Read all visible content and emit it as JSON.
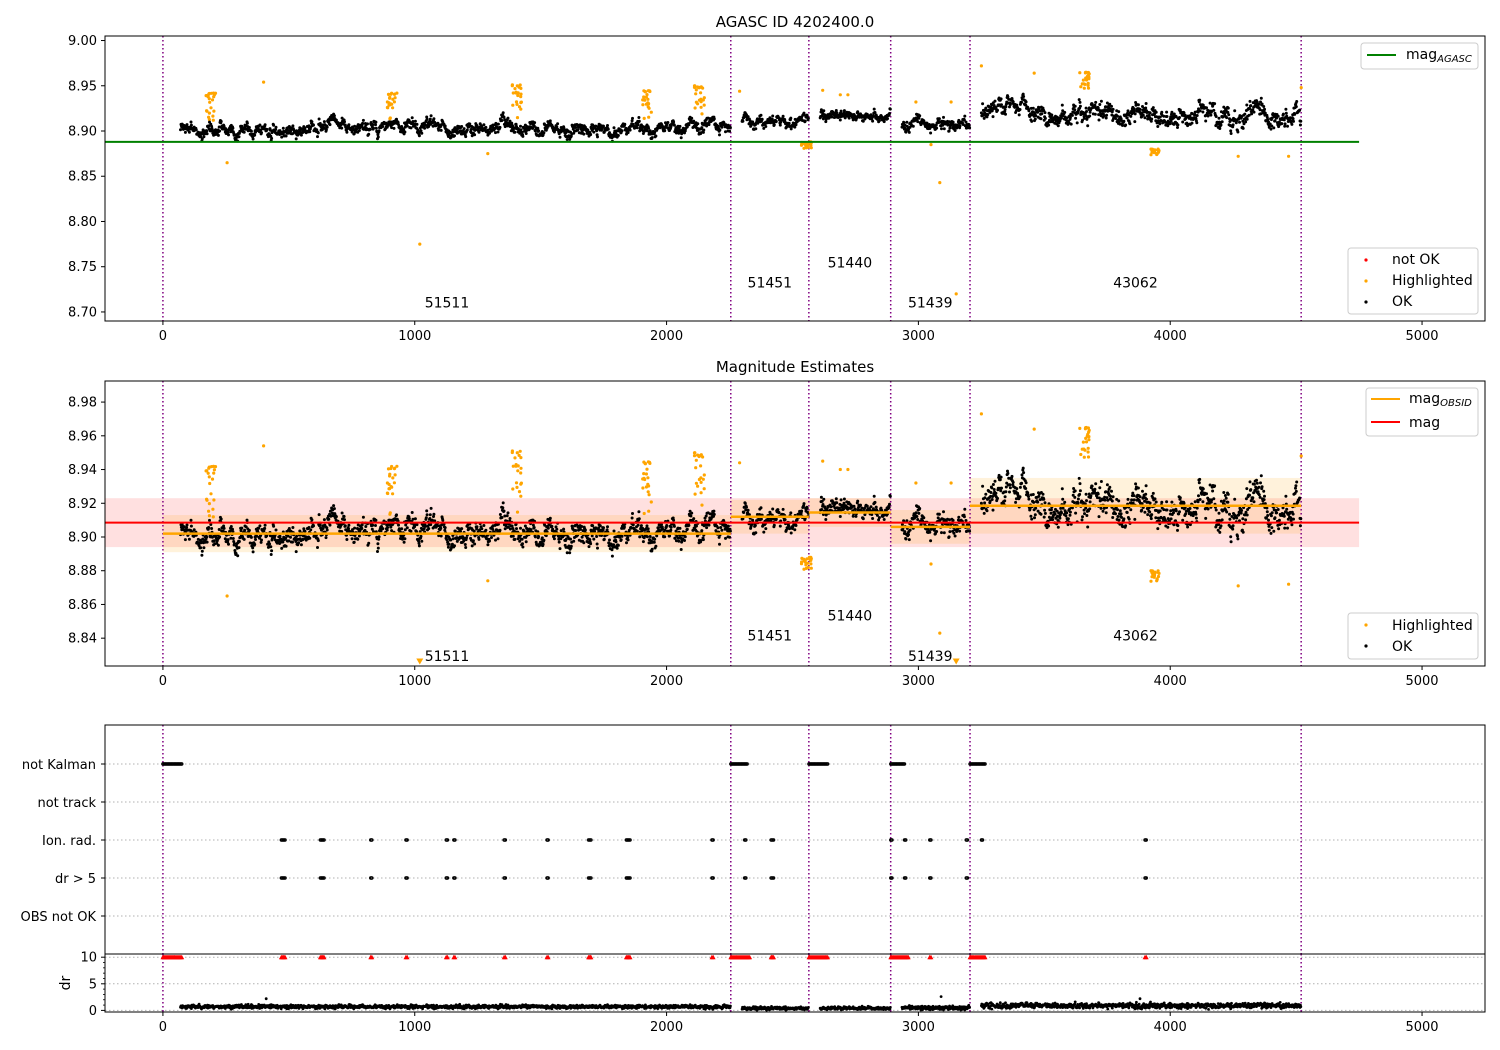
{
  "colors": {
    "ok": "#000000",
    "highlighted": "#ffa500",
    "not_ok": "#ff0000",
    "mag_agasc": "#008000",
    "mag_obsid": "#ffa500",
    "mag": "#ff0000",
    "obs_boundary": "#800080",
    "grid": "#b0b0b0"
  },
  "chart_data": [
    {
      "type": "scatter",
      "title": "AGASC ID 4202400.0",
      "xlim": [
        -230,
        5250
      ],
      "ylim": [
        8.69,
        9.005
      ],
      "xticks": [
        0,
        1000,
        2000,
        3000,
        4000,
        5000
      ],
      "xtick_labels": [
        "0",
        "1000",
        "2000",
        "3000",
        "4000",
        "5000"
      ],
      "yticks": [
        8.7,
        8.75,
        8.8,
        8.85,
        8.9,
        8.95,
        9.0
      ],
      "ytick_labels": [
        "8.70",
        "8.75",
        "8.80",
        "8.85",
        "8.90",
        "8.95",
        "9.00"
      ],
      "obs_boundaries": [
        0,
        2255,
        2565,
        2890,
        3205,
        4520
      ],
      "obsid_labels": [
        {
          "text": "51511",
          "x": 1128,
          "y": 8.705
        },
        {
          "text": "51451",
          "x": 2410,
          "y": 8.727
        },
        {
          "text": "51440",
          "x": 2728,
          "y": 8.749
        },
        {
          "text": "51439",
          "x": 3047,
          "y": 8.705
        },
        {
          "text": "43062",
          "x": 3862,
          "y": 8.727
        }
      ],
      "lines": [
        {
          "name": "mag_AGASC",
          "x": [
            -230,
            4750
          ],
          "y": [
            8.888,
            8.888
          ]
        }
      ],
      "legends": [
        {
          "position": "top-right",
          "entries": [
            {
              "label": "mag",
              "subscript": "AGASC",
              "kind": "line",
              "color": "#008000"
            }
          ]
        },
        {
          "position": "bottom-right",
          "entries": [
            {
              "label": "not OK",
              "kind": "marker",
              "color": "#ff0000"
            },
            {
              "label": "Highlighted",
              "kind": "marker",
              "color": "#ffa500"
            },
            {
              "label": "OK",
              "kind": "marker",
              "color": "#000000"
            }
          ]
        }
      ],
      "segments": [
        {
          "x0": 70,
          "x1": 2255,
          "base": 8.902,
          "spread": 0.0075
        },
        {
          "x0": 2300,
          "x1": 2565,
          "base": 8.912,
          "spread": 0.0065
        },
        {
          "x0": 2610,
          "x1": 2890,
          "base": 8.915,
          "spread": 0.0055
        },
        {
          "x0": 2935,
          "x1": 3205,
          "base": 8.905,
          "spread": 0.0065
        },
        {
          "x0": 3250,
          "x1": 4520,
          "base": 8.918,
          "spread": 0.011
        }
      ],
      "highlight_clusters": [
        {
          "x": 190,
          "y0": 8.905,
          "y1": 8.942
        },
        {
          "x": 910,
          "y0": 8.91,
          "y1": 8.942
        },
        {
          "x": 1405,
          "y0": 8.905,
          "y1": 8.951
        },
        {
          "x": 1920,
          "y0": 8.91,
          "y1": 8.945
        },
        {
          "x": 2130,
          "y0": 8.91,
          "y1": 8.95
        },
        {
          "x": 2555,
          "y0": 8.88,
          "y1": 8.888
        },
        {
          "x": 3660,
          "y0": 8.945,
          "y1": 8.965
        },
        {
          "x": 3940,
          "y0": 8.873,
          "y1": 8.88
        }
      ],
      "highlight_points": [
        {
          "x": 255,
          "y": 8.865
        },
        {
          "x": 400,
          "y": 8.954
        },
        {
          "x": 1020,
          "y": 8.775
        },
        {
          "x": 1290,
          "y": 8.875
        },
        {
          "x": 2290,
          "y": 8.944
        },
        {
          "x": 2620,
          "y": 8.945
        },
        {
          "x": 2690,
          "y": 8.94
        },
        {
          "x": 2720,
          "y": 8.94
        },
        {
          "x": 2990,
          "y": 8.932
        },
        {
          "x": 3050,
          "y": 8.885
        },
        {
          "x": 3085,
          "y": 8.843
        },
        {
          "x": 3150,
          "y": 8.72
        },
        {
          "x": 3130,
          "y": 8.932
        },
        {
          "x": 3250,
          "y": 8.972
        },
        {
          "x": 3460,
          "y": 8.964
        },
        {
          "x": 4270,
          "y": 8.872
        },
        {
          "x": 4470,
          "y": 8.872
        },
        {
          "x": 4520,
          "y": 8.948
        }
      ]
    },
    {
      "type": "scatter",
      "title": "Magnitude Estimates",
      "xlim": [
        -230,
        5250
      ],
      "ylim": [
        8.8235,
        8.9925
      ],
      "xticks": [
        0,
        1000,
        2000,
        3000,
        4000,
        5000
      ],
      "xtick_labels": [
        "0",
        "1000",
        "2000",
        "3000",
        "4000",
        "5000"
      ],
      "yticks": [
        8.84,
        8.86,
        8.88,
        8.9,
        8.92,
        8.94,
        8.96,
        8.98
      ],
      "ytick_labels": [
        "8.84",
        "8.86",
        "8.88",
        "8.90",
        "8.92",
        "8.94",
        "8.96",
        "8.98"
      ],
      "obs_boundaries": [
        0,
        2255,
        2565,
        2890,
        3205,
        4520
      ],
      "obsid_labels": [
        {
          "text": "51511",
          "x": 1128,
          "y": 8.8265
        },
        {
          "text": "51451",
          "x": 2410,
          "y": 8.8385
        },
        {
          "text": "51440",
          "x": 2728,
          "y": 8.8505
        },
        {
          "text": "51439",
          "x": 3047,
          "y": 8.8265
        },
        {
          "text": "43062",
          "x": 3862,
          "y": 8.8385
        }
      ],
      "mag": {
        "value": 8.9085,
        "band": [
          8.894,
          8.923
        ],
        "x": [
          -230,
          4750
        ]
      },
      "mag_obsid": [
        {
          "x0": 0,
          "x1": 2255,
          "value": 8.902,
          "band": [
            8.891,
            8.913
          ]
        },
        {
          "x0": 2255,
          "x1": 2565,
          "value": 8.912,
          "band": [
            8.902,
            8.922
          ]
        },
        {
          "x0": 2565,
          "x1": 2890,
          "value": 8.9145,
          "band": [
            8.906,
            8.923
          ]
        },
        {
          "x0": 2890,
          "x1": 3205,
          "value": 8.906,
          "band": [
            8.896,
            8.916
          ]
        },
        {
          "x0": 3205,
          "x1": 4520,
          "value": 8.9185,
          "band": [
            8.902,
            8.935
          ]
        }
      ],
      "down_markers": [
        {
          "x": 1020,
          "y": 8.825
        },
        {
          "x": 3150,
          "y": 8.825
        }
      ],
      "legends": [
        {
          "position": "top-right",
          "entries": [
            {
              "label": "mag",
              "subscript": "OBSID",
              "kind": "line",
              "color": "#ffa500"
            },
            {
              "label": "mag",
              "subscript": "",
              "kind": "line",
              "color": "#ff0000"
            }
          ]
        },
        {
          "position": "bottom-right",
          "entries": [
            {
              "label": "Highlighted",
              "kind": "marker",
              "color": "#ffa500"
            },
            {
              "label": "OK",
              "kind": "marker",
              "color": "#000000"
            }
          ]
        }
      ],
      "segments": [
        {
          "x0": 70,
          "x1": 2255,
          "base": 8.902,
          "spread": 0.0075
        },
        {
          "x0": 2300,
          "x1": 2565,
          "base": 8.912,
          "spread": 0.0065
        },
        {
          "x0": 2610,
          "x1": 2890,
          "base": 8.915,
          "spread": 0.0055
        },
        {
          "x0": 2935,
          "x1": 3205,
          "base": 8.905,
          "spread": 0.0065
        },
        {
          "x0": 3250,
          "x1": 4520,
          "base": 8.918,
          "spread": 0.011
        }
      ],
      "highlight_clusters": [
        {
          "x": 190,
          "y0": 8.905,
          "y1": 8.942
        },
        {
          "x": 910,
          "y0": 8.91,
          "y1": 8.942
        },
        {
          "x": 1405,
          "y0": 8.905,
          "y1": 8.951
        },
        {
          "x": 1920,
          "y0": 8.91,
          "y1": 8.945
        },
        {
          "x": 2130,
          "y0": 8.91,
          "y1": 8.95
        },
        {
          "x": 2555,
          "y0": 8.88,
          "y1": 8.888
        },
        {
          "x": 3660,
          "y0": 8.945,
          "y1": 8.965
        },
        {
          "x": 3940,
          "y0": 8.873,
          "y1": 8.88
        }
      ],
      "highlight_points": [
        {
          "x": 255,
          "y": 8.865
        },
        {
          "x": 400,
          "y": 8.954
        },
        {
          "x": 1290,
          "y": 8.874
        },
        {
          "x": 2290,
          "y": 8.944
        },
        {
          "x": 2620,
          "y": 8.945
        },
        {
          "x": 2690,
          "y": 8.94
        },
        {
          "x": 2720,
          "y": 8.94
        },
        {
          "x": 2990,
          "y": 8.932
        },
        {
          "x": 3050,
          "y": 8.884
        },
        {
          "x": 3085,
          "y": 8.843
        },
        {
          "x": 3130,
          "y": 8.932
        },
        {
          "x": 3250,
          "y": 8.973
        },
        {
          "x": 3460,
          "y": 8.964
        },
        {
          "x": 4270,
          "y": 8.871
        },
        {
          "x": 4470,
          "y": 8.872
        },
        {
          "x": 4520,
          "y": 8.948
        }
      ]
    },
    {
      "type": "scatter",
      "title": "",
      "xlim": [
        -230,
        5250
      ],
      "flag_rows": [
        "not Kalman",
        "not track",
        "Ion. rad.",
        "dr > 5",
        "OBS not OK"
      ],
      "obs_boundaries": [
        0,
        2255,
        2565,
        2890,
        3205,
        4520
      ],
      "flags": {
        "not Kalman": [
          [
            0,
            75
          ],
          [
            2255,
            2320
          ],
          [
            2565,
            2640
          ],
          [
            2890,
            2945
          ],
          [
            3205,
            3265
          ]
        ],
        "not track": [],
        "Ion. rad.": [
          [
            470,
            485
          ],
          [
            625,
            640
          ],
          [
            825,
            830
          ],
          [
            965,
            970
          ],
          [
            1125,
            1130
          ],
          [
            1155,
            1160
          ],
          [
            1355,
            1360
          ],
          [
            1525,
            1530
          ],
          [
            1690,
            1700
          ],
          [
            1840,
            1855
          ],
          [
            2180,
            2185
          ],
          [
            2310,
            2315
          ],
          [
            2415,
            2425
          ],
          [
            2890,
            2895
          ],
          [
            2945,
            2950
          ],
          [
            3045,
            3050
          ],
          [
            3190,
            3195
          ],
          [
            3250,
            3255
          ],
          [
            3900,
            3905
          ]
        ],
        "dr > 5": [
          [
            470,
            485
          ],
          [
            625,
            640
          ],
          [
            825,
            830
          ],
          [
            965,
            970
          ],
          [
            1125,
            1130
          ],
          [
            1155,
            1160
          ],
          [
            1355,
            1360
          ],
          [
            1525,
            1530
          ],
          [
            1690,
            1700
          ],
          [
            1840,
            1855
          ],
          [
            2180,
            2185
          ],
          [
            2310,
            2315
          ],
          [
            2415,
            2425
          ],
          [
            2890,
            2895
          ],
          [
            2945,
            2950
          ],
          [
            3045,
            3050
          ],
          [
            3190,
            3195
          ],
          [
            3900,
            3905
          ]
        ],
        "OBS not OK": []
      }
    },
    {
      "type": "scatter",
      "title": "",
      "ylabel": "dr",
      "xlim": [
        -230,
        5250
      ],
      "ylim": [
        -0.3,
        10.6
      ],
      "xticks": [
        0,
        1000,
        2000,
        3000,
        4000,
        5000
      ],
      "xtick_labels": [
        "0",
        "1000",
        "2000",
        "3000",
        "4000",
        "5000"
      ],
      "yticks": [
        0,
        5,
        10
      ],
      "ytick_labels": [
        "0",
        "5",
        "10"
      ],
      "clipped_at": 10,
      "obs_boundaries": [
        0,
        2255,
        2565,
        2890,
        3205,
        4520
      ],
      "clipped_ranges": [
        [
          0,
          75
        ],
        [
          470,
          485
        ],
        [
          625,
          640
        ],
        [
          825,
          830
        ],
        [
          965,
          970
        ],
        [
          1125,
          1130
        ],
        [
          1155,
          1160
        ],
        [
          1355,
          1360
        ],
        [
          1525,
          1530
        ],
        [
          1690,
          1700
        ],
        [
          1840,
          1855
        ],
        [
          2180,
          2185
        ],
        [
          2255,
          2330
        ],
        [
          2415,
          2425
        ],
        [
          2565,
          2640
        ],
        [
          2890,
          2960
        ],
        [
          3045,
          3050
        ],
        [
          3205,
          3265
        ],
        [
          3900,
          3905
        ]
      ],
      "segments": [
        {
          "x0": 70,
          "x1": 2255,
          "base": 0.7,
          "spread": 0.25
        },
        {
          "x0": 2300,
          "x1": 2565,
          "base": 0.4,
          "spread": 0.2
        },
        {
          "x0": 2610,
          "x1": 2890,
          "base": 0.4,
          "spread": 0.2
        },
        {
          "x0": 2935,
          "x1": 3205,
          "base": 0.5,
          "spread": 0.25
        },
        {
          "x0": 3250,
          "x1": 4520,
          "base": 0.9,
          "spread": 0.35
        }
      ],
      "spikes": [
        {
          "x": 410,
          "y": 2.2
        },
        {
          "x": 3090,
          "y": 2.6
        },
        {
          "x": 3880,
          "y": 2.2
        }
      ]
    }
  ]
}
